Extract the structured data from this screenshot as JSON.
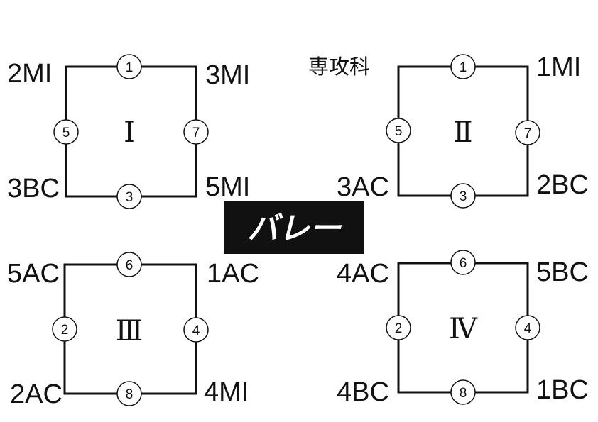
{
  "banner": {
    "text": "バレー"
  },
  "groups": [
    {
      "numeral": "Ⅰ",
      "teams": {
        "top_left": "2MI",
        "top_right": "3MI",
        "bottom_left": "3BC",
        "bottom_right": "5MI"
      },
      "matches": {
        "top": "1",
        "left": "5",
        "right": "7",
        "bottom": "3"
      }
    },
    {
      "numeral": "Ⅱ",
      "teams": {
        "top_left": "専攻科",
        "top_right": "1MI",
        "bottom_left": "3AC",
        "bottom_right": "2BC"
      },
      "matches": {
        "top": "1",
        "left": "5",
        "right": "7",
        "bottom": "3"
      }
    },
    {
      "numeral": "Ⅲ",
      "teams": {
        "top_left": "5AC",
        "top_right": "1AC",
        "bottom_left": "2AC",
        "bottom_right": "4MI"
      },
      "matches": {
        "top": "6",
        "left": "2",
        "right": "4",
        "bottom": "8"
      }
    },
    {
      "numeral": "Ⅳ",
      "teams": {
        "top_left": "4AC",
        "top_right": "5BC",
        "bottom_left": "4BC",
        "bottom_right": "1BC"
      },
      "matches": {
        "top": "6",
        "left": "2",
        "right": "4",
        "bottom": "8"
      }
    }
  ]
}
